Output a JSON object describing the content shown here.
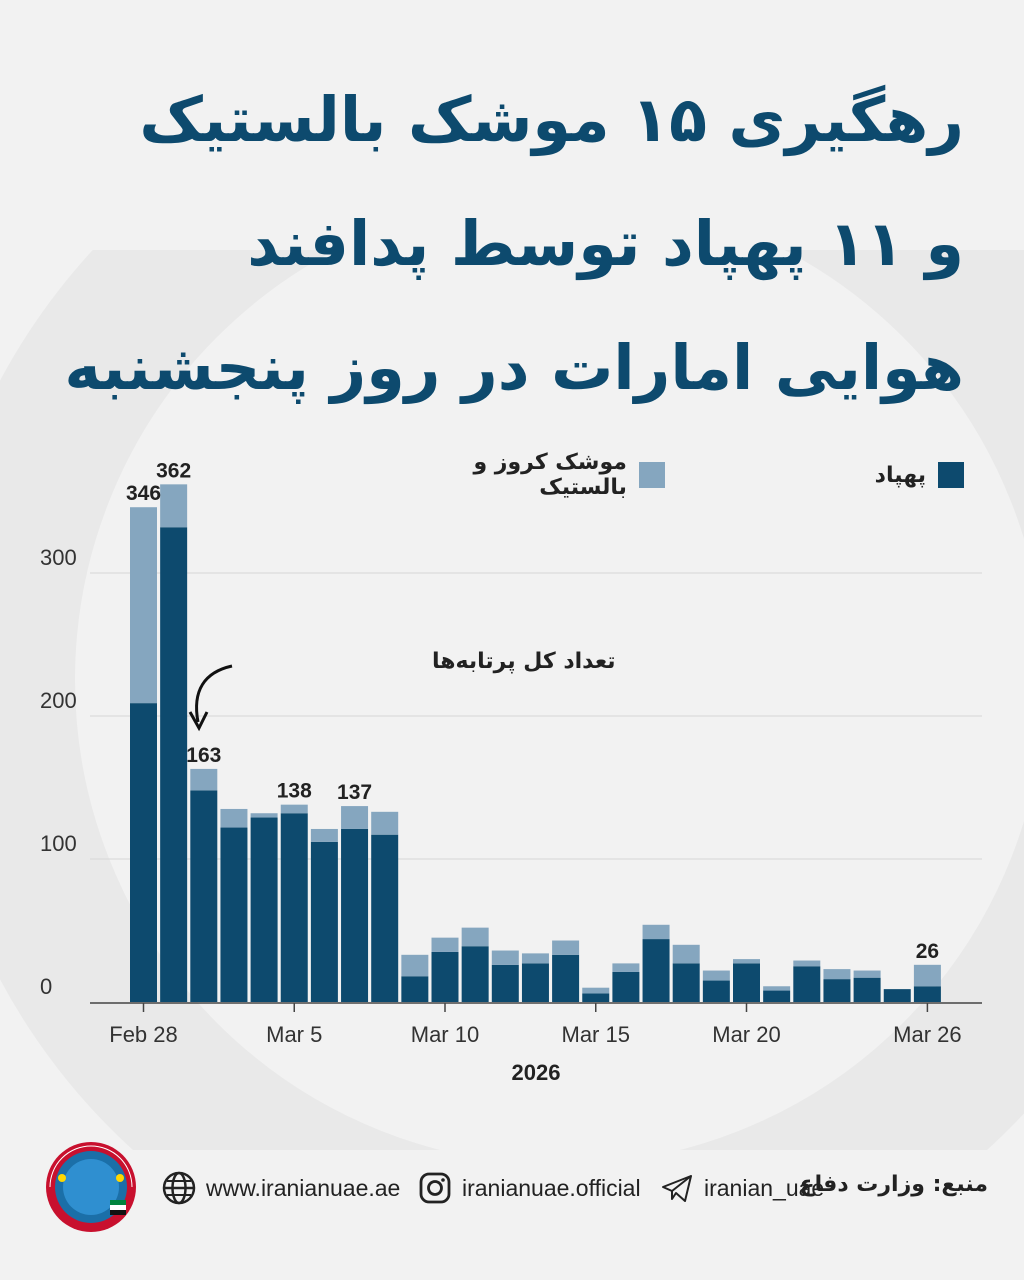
{
  "title": {
    "line1": "رهگیری ۱۵ موشک بالستیک",
    "line2": "و ۱۱ پهپاد توسط پدافند",
    "line3": "هوایی امارات در روز پنجشنبه"
  },
  "legend": {
    "drone": "پهپاد",
    "missile": "موشک کروز و بالستیک"
  },
  "annotation": "تعداد کل پرتابه‌ها",
  "footer": {
    "logo_text": "IRANIAN UAE",
    "logo_subtext": "ایرانیان امارات",
    "website": "www.iranianuae.ae",
    "instagram": "iranianuae.official",
    "telegram": "iranian_uae",
    "source": "منبع: وزارت دفاع"
  },
  "colors": {
    "title": "#0d4a6e",
    "drone": "#0d4a6e",
    "missile": "#85a6bf",
    "background": "#f2f2f2"
  },
  "chart_data": {
    "type": "bar",
    "stacked": true,
    "xlabel": "2026",
    "ylabel": "",
    "ylim": [
      0,
      400
    ],
    "yticks": [
      0,
      100,
      200,
      300
    ],
    "grid": true,
    "legend_position": "top",
    "categories": [
      "Feb 28",
      "Mar 1",
      "Mar 2",
      "Mar 3",
      "Mar 4",
      "Mar 5",
      "Mar 6",
      "Mar 7",
      "Mar 8",
      "Mar 9",
      "Mar 10",
      "Mar 11",
      "Mar 12",
      "Mar 13",
      "Mar 14",
      "Mar 15",
      "Mar 16",
      "Mar 17",
      "Mar 18",
      "Mar 19",
      "Mar 20",
      "Mar 21",
      "Mar 22",
      "Mar 23",
      "Mar 24",
      "Mar 25",
      "Mar 26"
    ],
    "xtick_labels": [
      "Feb 28",
      "Mar 5",
      "Mar 10",
      "Mar 15",
      "Mar 20",
      "Mar 26"
    ],
    "series": [
      {
        "name": "پهپاد",
        "values": [
          209,
          332,
          148,
          122,
          129,
          132,
          112,
          121,
          117,
          18,
          35,
          39,
          26,
          27,
          33,
          6,
          21,
          44,
          27,
          15,
          27,
          8,
          25,
          16,
          17,
          9,
          11
        ]
      },
      {
        "name": "موشک کروز و بالستیک",
        "values": [
          137,
          30,
          15,
          13,
          3,
          6,
          9,
          16,
          16,
          15,
          10,
          13,
          10,
          7,
          10,
          4,
          6,
          10,
          13,
          7,
          3,
          3,
          4,
          7,
          5,
          0,
          15
        ]
      }
    ],
    "totals_labels": [
      {
        "category": "Feb 28",
        "value": 346
      },
      {
        "category": "Mar 1",
        "value": 362
      },
      {
        "category": "Mar 2",
        "value": 163
      },
      {
        "category": "Mar 5",
        "value": 138
      },
      {
        "category": "Mar 7",
        "value": 137
      },
      {
        "category": "Mar 26",
        "value": 26
      }
    ]
  }
}
